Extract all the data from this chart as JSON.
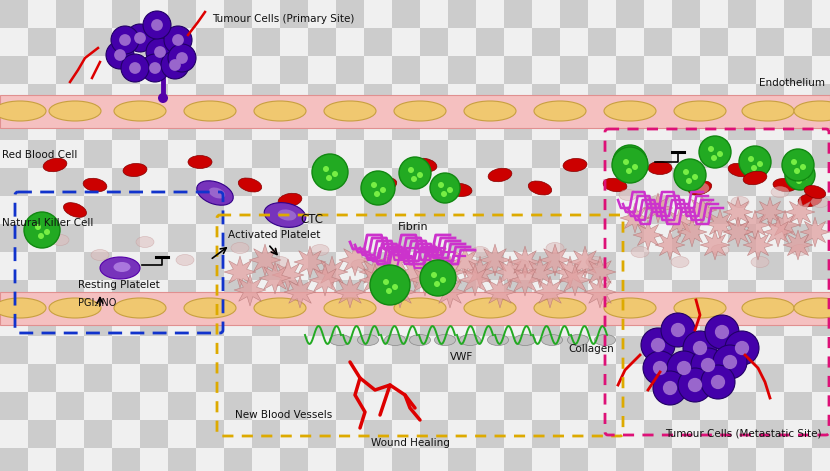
{
  "bg_checker_light": "#cccccc",
  "bg_checker_white": "#f0f0f0",
  "endo_fill": "#f5c0c0",
  "endo_stroke": "#e09090",
  "endo_cell_fill": "#f0c870",
  "endo_cell_stroke": "#c8a040",
  "rbc_color": "#cc0000",
  "rbc_edge": "#880000",
  "purple_dark": "#4400aa",
  "purple_mid": "#7733bb",
  "purple_light": "#9966cc",
  "green_cell": "#22aa22",
  "green_light": "#66dd44",
  "fibrin_color": "#cc33cc",
  "green_coil": "#22aa22",
  "collagen_gray": "#aaaaaa",
  "vessel_red": "#dd0000",
  "blue_box": "#1133cc",
  "yellow_box": "#ddaa00",
  "pink_box": "#dd1177",
  "activated_fill": "#e0a0a0",
  "activated_edge": "#b07070",
  "label_color": "#111111",
  "pgi2_text": "PGI₂,NO",
  "label_endo": "Endothelium",
  "label_tumour_primary": "Tumour Cells (Primary Site)",
  "label_rbc": "Red Blood Cell",
  "label_nk": "Natural Killer Cell",
  "label_ctc": "CTC",
  "label_fibrin": "Fibrin",
  "label_act_platelet": "Activated Platelet",
  "label_rest_platelet": "Resting Platelet",
  "label_vwf": "VWF",
  "label_collagen": "Collagen",
  "label_nbv": "New Blood Vessels",
  "label_wh": "Wound Healing",
  "label_tumour_meta": "Tumour Cells (Metastatic Site)"
}
